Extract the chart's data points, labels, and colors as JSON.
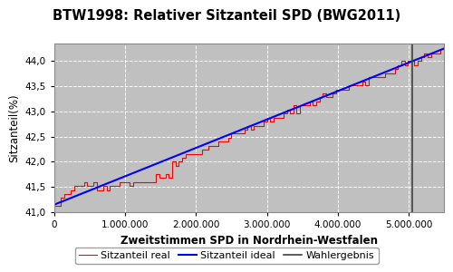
{
  "title": "BTW1998: Relativer Sitzanteil SPD (BWG2011)",
  "xlabel": "Zweitstimmen SPD in Nordrhein-Westfalen",
  "ylabel": "Sitzanteil(%)",
  "xlim": [
    0,
    5500000
  ],
  "ylim": [
    41.0,
    44.35
  ],
  "wahlergebnis_x": 5050000,
  "plot_bg_color": "#c0c0c0",
  "fig_bg_color": "#ffffff",
  "line_real_color": "#ff0000",
  "line_ideal_color": "#0000ff",
  "line_wahlergebnis_color": "#404040",
  "legend_labels": [
    "Sitzanteil real",
    "Sitzanteil ideal",
    "Wahlergebnis"
  ],
  "yticks": [
    41.0,
    41.5,
    42.0,
    42.5,
    43.0,
    43.5,
    44.0
  ],
  "xticks": [
    0,
    1000000,
    2000000,
    3000000,
    4000000,
    5000000
  ]
}
